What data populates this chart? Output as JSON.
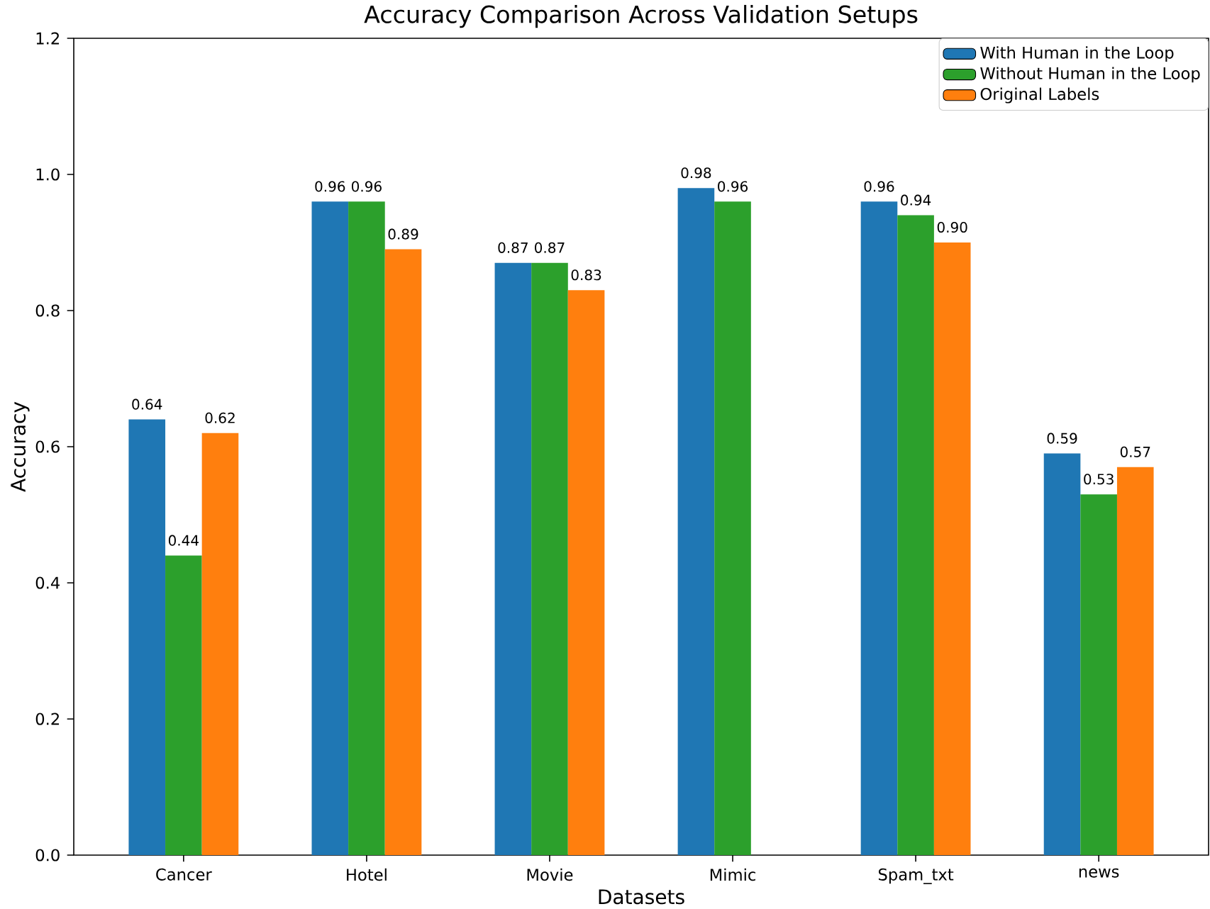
{
  "chart_data": {
    "type": "bar",
    "title": "Accuracy Comparison Across Validation Setups",
    "xlabel": "Datasets",
    "ylabel": "Accuracy",
    "categories": [
      "Cancer",
      "Hotel",
      "Movie",
      "Mimic",
      "Spam_txt",
      "news"
    ],
    "series": [
      {
        "name": "With Human in the Loop",
        "color": "#1f77b4",
        "values": [
          0.64,
          0.96,
          0.87,
          0.98,
          0.96,
          0.59
        ],
        "value_labels": [
          "0.64",
          "0.96",
          "0.87",
          "0.98",
          "0.96",
          "0.59"
        ]
      },
      {
        "name": "Without Human in the Loop",
        "color": "#2ca02c",
        "values": [
          0.44,
          0.96,
          0.87,
          0.96,
          0.94,
          0.53
        ],
        "value_labels": [
          "0.44",
          "0.96",
          "0.87",
          "0.96",
          "0.94",
          "0.53"
        ]
      },
      {
        "name": "Original Labels",
        "color": "#ff7f0e",
        "values": [
          0.62,
          0.89,
          0.83,
          null,
          0.9,
          0.57
        ],
        "value_labels": [
          "0.62",
          "0.89",
          "0.83",
          null,
          "0.90",
          "0.57"
        ]
      }
    ],
    "ylim": [
      0,
      1.2
    ],
    "yticks": [
      {
        "value": 0,
        "label": "0.0"
      },
      {
        "value": 0.2,
        "label": "0.2"
      },
      {
        "value": 0.4,
        "label": "0.4"
      },
      {
        "value": 0.6,
        "label": "0.6"
      },
      {
        "value": 0.8,
        "label": "0.8"
      },
      {
        "value": 1.0,
        "label": "1.0"
      },
      {
        "value": 1.2,
        "label": "1.2"
      }
    ],
    "legend": "top right",
    "grid": false
  }
}
